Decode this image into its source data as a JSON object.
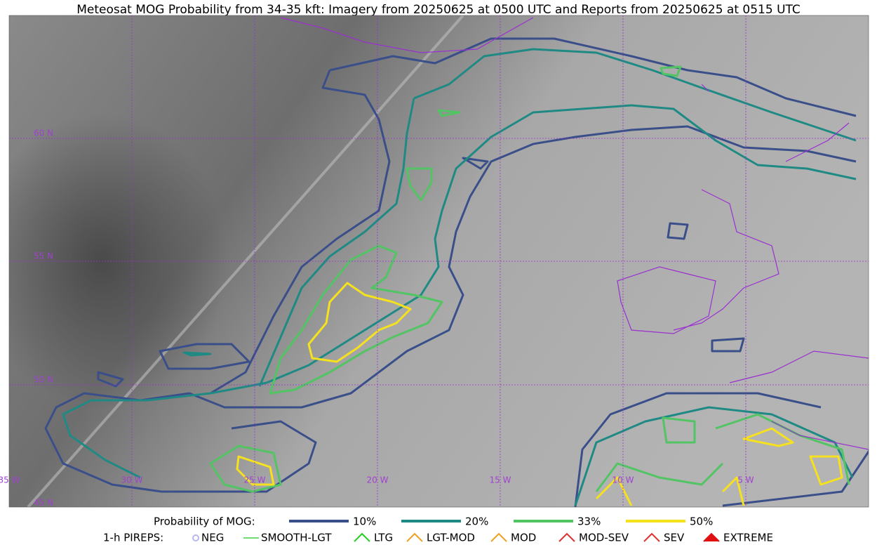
{
  "title": "Meteosat MOG Probability from 34-35 kft: Imagery from 20250625 at 0500 UTC and Reports from 20250625 at 0515 UTC",
  "lat_labels": [
    "60 N",
    "55 N",
    "50 N",
    "45 N"
  ],
  "lon_labels": [
    "35 W",
    "30 W",
    "25 W",
    "20 W",
    "15 W",
    "10 W",
    "5 W"
  ],
  "probability_legend": {
    "title": "Probability of MOG:",
    "items": [
      {
        "label": "10%",
        "color": "#3a4f8a"
      },
      {
        "label": "20%",
        "color": "#1f8a84"
      },
      {
        "label": "33%",
        "color": "#52c464"
      },
      {
        "label": "50%",
        "color": "#f5e11e"
      }
    ]
  },
  "pirep_legend": {
    "title": "1-h PIREPS:",
    "items": [
      {
        "label": "NEG",
        "color": "#b8b8f0"
      },
      {
        "label": "SMOOTH-LGT",
        "color": "#40d040"
      },
      {
        "label": "LTG",
        "color": "#20d020"
      },
      {
        "label": "LGT-MOD",
        "color": "#f0a020"
      },
      {
        "label": "MOD",
        "color": "#f0a020"
      },
      {
        "label": "MOD-SEV",
        "color": "#e03030"
      },
      {
        "label": "SEV",
        "color": "#e03030"
      },
      {
        "label": "EXTREME",
        "color": "#e01010"
      }
    ]
  }
}
